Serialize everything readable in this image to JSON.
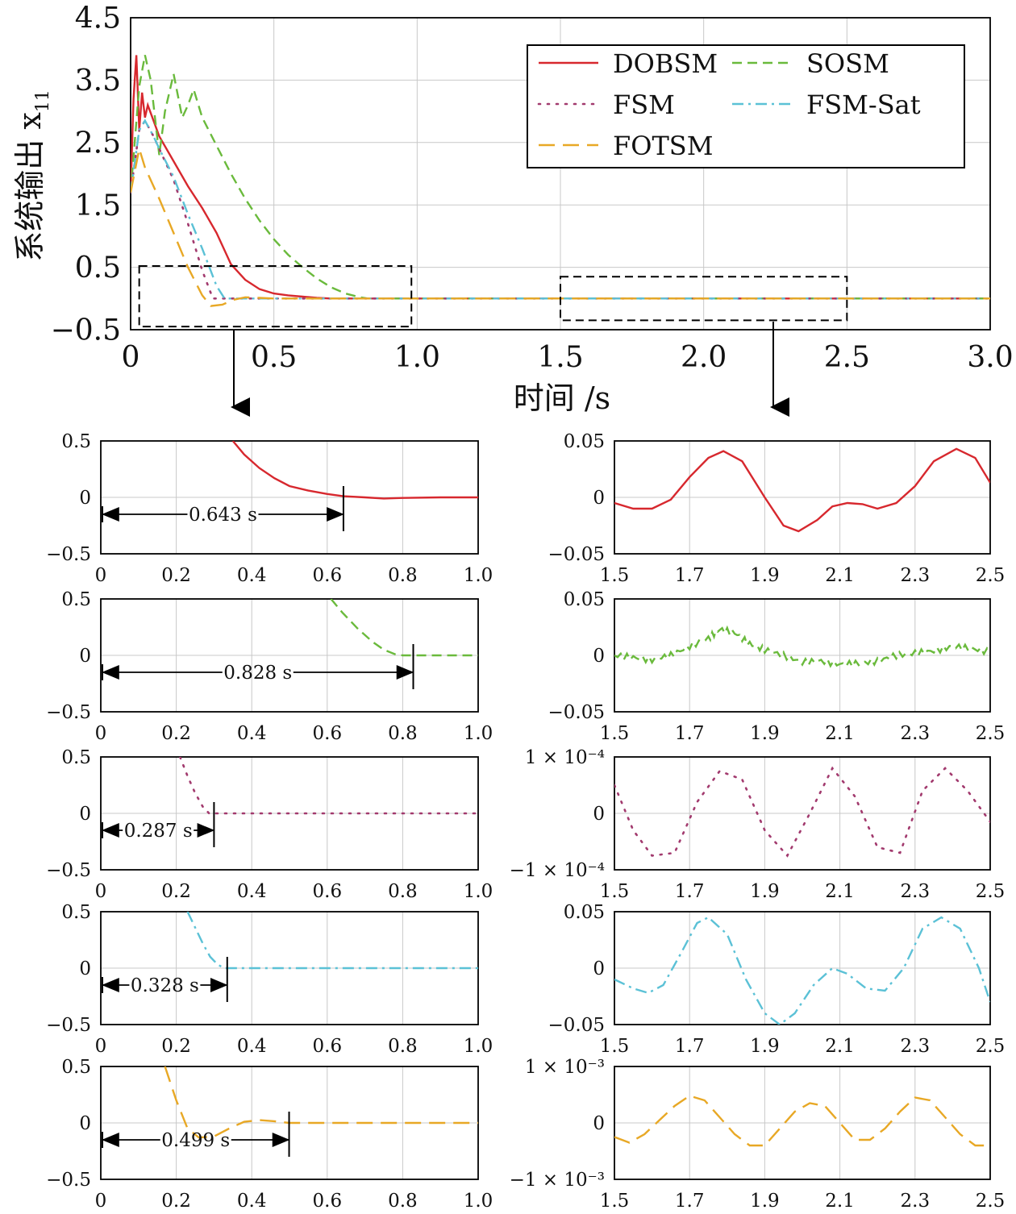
{
  "colors": {
    "DOBSM": "#d7282e",
    "SOSM": "#6aba3c",
    "FSM": "#a23a6e",
    "FSM-Sat": "#5bc1d6",
    "FOTSM": "#e8a825"
  },
  "chart_data": [
    {
      "id": "main",
      "type": "line",
      "xlabel": "时间 /s",
      "ylabel": "系统输出 x",
      "ylabel_sub": "11",
      "xlim": [
        0,
        3.0
      ],
      "ylim": [
        -0.5,
        4.5
      ],
      "xticks": [
        "0",
        "0.5",
        "1.0",
        "1.5",
        "2.0",
        "2.5",
        "3.0"
      ],
      "xtick_values": [
        0,
        0.5,
        1.0,
        1.5,
        2.0,
        2.5,
        3.0
      ],
      "yticks": [
        "4.5",
        "3.5",
        "2.5",
        "1.5",
        "0.5",
        "−0.5"
      ],
      "ytick_values": [
        4.5,
        3.5,
        2.5,
        1.5,
        0.5,
        -0.5
      ],
      "grid": true,
      "legend_position": "top-right",
      "legend": [
        "DOBSM",
        "SOSM",
        "FSM",
        "FSM-Sat",
        "FOTSM"
      ],
      "series": [
        {
          "name": "DOBSM",
          "style": "solid",
          "x": [
            0,
            0.01,
            0.02,
            0.03,
            0.04,
            0.05,
            0.06,
            0.08,
            0.1,
            0.15,
            0.2,
            0.25,
            0.3,
            0.35,
            0.4,
            0.45,
            0.5,
            0.55,
            0.6,
            0.65,
            0.7,
            0.8,
            1.0,
            1.5,
            2.0,
            2.5,
            3.0
          ],
          "y": [
            1.7,
            3.2,
            3.9,
            2.7,
            3.3,
            2.9,
            3.1,
            2.85,
            2.6,
            2.2,
            1.8,
            1.45,
            1.05,
            0.55,
            0.3,
            0.15,
            0.08,
            0.05,
            0.03,
            0.01,
            0.0,
            0.0,
            0.0,
            0.0,
            0.0,
            0.0,
            0.0
          ]
        },
        {
          "name": "SOSM",
          "style": "dashed",
          "x": [
            0,
            0.03,
            0.05,
            0.07,
            0.1,
            0.12,
            0.15,
            0.18,
            0.2,
            0.22,
            0.25,
            0.3,
            0.35,
            0.4,
            0.45,
            0.5,
            0.55,
            0.6,
            0.65,
            0.7,
            0.75,
            0.8,
            0.828,
            0.9,
            1.0,
            1.5,
            2.0,
            2.5,
            3.0
          ],
          "y": [
            1.7,
            3.4,
            3.9,
            3.5,
            2.3,
            3.0,
            3.6,
            2.9,
            3.1,
            3.35,
            2.9,
            2.45,
            2.0,
            1.6,
            1.25,
            0.95,
            0.7,
            0.5,
            0.32,
            0.18,
            0.08,
            0.02,
            0.0,
            0.0,
            0.0,
            0.0,
            0.0,
            0.0,
            0.0
          ]
        },
        {
          "name": "FSM",
          "style": "dotted",
          "x": [
            0,
            0.03,
            0.05,
            0.08,
            0.1,
            0.15,
            0.2,
            0.25,
            0.287,
            0.3,
            0.5,
            1.0,
            1.5,
            2.0,
            2.5,
            3.0
          ],
          "y": [
            1.7,
            2.7,
            2.85,
            2.6,
            2.4,
            1.9,
            1.2,
            0.45,
            0.0,
            0.0,
            0.0,
            0.0,
            0.0,
            0.0,
            0.0,
            0.0
          ]
        },
        {
          "name": "FSM-Sat",
          "style": "dashdot",
          "x": [
            0,
            0.03,
            0.05,
            0.08,
            0.1,
            0.15,
            0.2,
            0.25,
            0.3,
            0.328,
            0.4,
            0.5,
            1.0,
            1.5,
            2.0,
            2.5,
            3.0
          ],
          "y": [
            1.7,
            2.7,
            2.85,
            2.6,
            2.4,
            1.95,
            1.35,
            0.8,
            0.2,
            0.0,
            0.0,
            0.0,
            0.0,
            0.0,
            0.0,
            0.0,
            0.0
          ]
        },
        {
          "name": "FOTSM",
          "style": "longdash",
          "x": [
            0,
            0.03,
            0.05,
            0.1,
            0.15,
            0.2,
            0.25,
            0.28,
            0.32,
            0.36,
            0.4,
            0.45,
            0.5,
            0.6,
            1.0,
            1.5,
            2.0,
            2.5,
            3.0
          ],
          "y": [
            1.7,
            2.4,
            2.1,
            1.6,
            1.05,
            0.5,
            0.05,
            -0.12,
            -0.1,
            -0.02,
            0.02,
            0.01,
            0.0,
            0.0,
            0.0,
            0.0,
            0.0,
            0.0,
            0.0
          ]
        }
      ]
    },
    {
      "id": "left-1",
      "type": "line",
      "series_name": "DOBSM",
      "style": "solid",
      "xlim": [
        0,
        1.0
      ],
      "ylim": [
        -0.5,
        0.5
      ],
      "xticks": [
        "0",
        "0.2",
        "0.4",
        "0.6",
        "0.8",
        "1.0"
      ],
      "xtick_values": [
        0,
        0.2,
        0.4,
        0.6,
        0.8,
        1.0
      ],
      "yticks": [
        "0.5",
        "0",
        "−0.5"
      ],
      "ytick_values": [
        0.5,
        0,
        -0.5
      ],
      "x": [
        0.35,
        0.38,
        0.42,
        0.46,
        0.5,
        0.55,
        0.6,
        0.643,
        0.7,
        0.75,
        0.8,
        0.9,
        1.0
      ],
      "y": [
        0.5,
        0.38,
        0.26,
        0.17,
        0.1,
        0.06,
        0.03,
        0.01,
        0.0,
        -0.01,
        -0.005,
        0.0,
        0.0
      ],
      "annotation": {
        "label": "0.643 s",
        "x": 0.643,
        "y": -0.15,
        "arrows": "both"
      }
    },
    {
      "id": "right-1",
      "type": "line",
      "series_name": "DOBSM",
      "style": "solid",
      "xlim": [
        1.5,
        2.5
      ],
      "ylim": [
        -0.05,
        0.05
      ],
      "xticks": [
        "1.5",
        "1.7",
        "1.9",
        "2.1",
        "2.3",
        "2.5"
      ],
      "xtick_values": [
        1.5,
        1.7,
        1.9,
        2.1,
        2.3,
        2.5
      ],
      "yticks": [
        "0.05",
        "0",
        "−0.05"
      ],
      "ytick_values": [
        0.05,
        0,
        -0.05
      ],
      "x": [
        1.5,
        1.55,
        1.6,
        1.65,
        1.7,
        1.75,
        1.79,
        1.84,
        1.9,
        1.95,
        1.99,
        2.04,
        2.08,
        2.12,
        2.16,
        2.2,
        2.25,
        2.3,
        2.35,
        2.41,
        2.46,
        2.5
      ],
      "y": [
        -0.005,
        -0.01,
        -0.01,
        -0.002,
        0.018,
        0.035,
        0.041,
        0.032,
        0.0,
        -0.025,
        -0.03,
        -0.02,
        -0.008,
        -0.005,
        -0.006,
        -0.01,
        -0.005,
        0.01,
        0.032,
        0.043,
        0.035,
        0.013
      ]
    },
    {
      "id": "left-2",
      "type": "line",
      "series_name": "SOSM",
      "style": "dashed",
      "xlim": [
        0,
        1.0
      ],
      "ylim": [
        -0.5,
        0.5
      ],
      "xticks": [
        "0",
        "0.2",
        "0.4",
        "0.6",
        "0.8",
        "1.0"
      ],
      "xtick_values": [
        0,
        0.2,
        0.4,
        0.6,
        0.8,
        1.0
      ],
      "yticks": [
        "0.5",
        "0",
        "−0.5"
      ],
      "ytick_values": [
        0.5,
        0,
        -0.5
      ],
      "x": [
        0.61,
        0.64,
        0.68,
        0.72,
        0.75,
        0.78,
        0.8,
        0.828,
        0.9,
        1.0
      ],
      "y": [
        0.5,
        0.38,
        0.24,
        0.12,
        0.05,
        0.01,
        0.0,
        0.0,
        0.0,
        0.0
      ],
      "annotation": {
        "label": "0.828 s",
        "x": 0.828,
        "y": -0.15,
        "arrows": "both"
      }
    },
    {
      "id": "right-2",
      "type": "line",
      "series_name": "SOSM",
      "style": "dashed",
      "xlim": [
        1.5,
        2.5
      ],
      "ylim": [
        -0.05,
        0.05
      ],
      "xticks": [
        "1.5",
        "1.7",
        "1.9",
        "2.1",
        "2.3",
        "2.5"
      ],
      "xtick_values": [
        1.5,
        1.7,
        1.9,
        2.1,
        2.3,
        2.5
      ],
      "yticks": [
        "0.05",
        "0",
        "−0.05"
      ],
      "ytick_values": [
        0.05,
        0,
        -0.05
      ],
      "x": [
        1.5,
        1.55,
        1.6,
        1.65,
        1.7,
        1.75,
        1.78,
        1.82,
        1.86,
        1.9,
        1.95,
        2.0,
        2.05,
        2.1,
        2.15,
        2.2,
        2.25,
        2.3,
        2.35,
        2.4,
        2.45,
        2.5
      ],
      "y": [
        0.0,
        -0.002,
        -0.004,
        0.0,
        0.008,
        0.015,
        0.023,
        0.02,
        0.01,
        0.005,
        0.0,
        -0.006,
        -0.005,
        -0.008,
        -0.007,
        -0.005,
        0.0,
        0.002,
        0.004,
        0.008,
        0.006,
        0.003
      ],
      "noise": true
    },
    {
      "id": "left-3",
      "type": "line",
      "series_name": "FSM",
      "style": "dotted",
      "xlim": [
        0,
        1.0
      ],
      "ylim": [
        -0.5,
        0.5
      ],
      "xticks": [
        "0",
        "0.2",
        "0.4",
        "0.6",
        "0.8",
        "1.0"
      ],
      "xtick_values": [
        0,
        0.2,
        0.4,
        0.6,
        0.8,
        1.0
      ],
      "yticks": [
        "0.5",
        "0",
        "−0.5"
      ],
      "ytick_values": [
        0.5,
        0,
        -0.5
      ],
      "x": [
        0.21,
        0.23,
        0.25,
        0.27,
        0.287,
        0.3,
        0.4,
        0.5,
        0.6,
        0.7,
        0.8,
        0.9,
        1.0
      ],
      "y": [
        0.5,
        0.33,
        0.18,
        0.06,
        0.0,
        0.0,
        0.0,
        0.0,
        0.0,
        0.0,
        0.0,
        0.0,
        0.0
      ],
      "annotation": {
        "label": "0.287 s",
        "x": 0.3,
        "y": -0.15,
        "arrows": "both"
      }
    },
    {
      "id": "right-3",
      "type": "line",
      "series_name": "FSM",
      "style": "dotted",
      "xlim": [
        1.5,
        2.5
      ],
      "ylim": [
        -0.0001,
        0.0001
      ],
      "xticks": [
        "1.5",
        "1.7",
        "1.9",
        "2.1",
        "2.3",
        "2.5"
      ],
      "xtick_values": [
        1.5,
        1.7,
        1.9,
        2.1,
        2.3,
        2.5
      ],
      "yticks": [
        "1 × 10⁻⁴",
        "0",
        "−1 × 10⁻⁴"
      ],
      "ytick_values": [
        0.0001,
        0,
        -0.0001
      ],
      "x": [
        1.5,
        1.55,
        1.6,
        1.66,
        1.72,
        1.78,
        1.84,
        1.9,
        1.96,
        2.02,
        2.08,
        2.14,
        2.2,
        2.26,
        2.32,
        2.38,
        2.44,
        2.5
      ],
      "y": [
        5e-05,
        -3e-05,
        -7.5e-05,
        -7e-05,
        2e-05,
        7.5e-05,
        6e-05,
        -3e-05,
        -7.5e-05,
        0.0,
        8e-05,
        3e-05,
        -6e-05,
        -7e-05,
        4e-05,
        8e-05,
        4e-05,
        -1.5e-05
      ]
    },
    {
      "id": "left-4",
      "type": "line",
      "series_name": "FSM-Sat",
      "style": "dashdot",
      "xlim": [
        0,
        1.0
      ],
      "ylim": [
        -0.5,
        0.5
      ],
      "xticks": [
        "0",
        "0.2",
        "0.4",
        "0.6",
        "0.8",
        "1.0"
      ],
      "xtick_values": [
        0,
        0.2,
        0.4,
        0.6,
        0.8,
        1.0
      ],
      "yticks": [
        "0.5",
        "0",
        "−0.5"
      ],
      "ytick_values": [
        0.5,
        0,
        -0.5
      ],
      "x": [
        0.23,
        0.25,
        0.27,
        0.29,
        0.31,
        0.328,
        0.4,
        0.5,
        0.6,
        0.7,
        0.8,
        0.9,
        1.0
      ],
      "y": [
        0.5,
        0.36,
        0.22,
        0.1,
        0.03,
        0.0,
        0.0,
        0.0,
        0.0,
        0.0,
        0.0,
        0.0,
        0.0
      ],
      "annotation": {
        "label": "0.328 s",
        "x": 0.335,
        "y": -0.15,
        "arrows": "both"
      }
    },
    {
      "id": "right-4",
      "type": "line",
      "series_name": "FSM-Sat",
      "style": "dashdot",
      "xlim": [
        1.5,
        2.5
      ],
      "ylim": [
        -0.05,
        0.05
      ],
      "xticks": [
        "1.5",
        "1.7",
        "1.9",
        "2.1",
        "2.3",
        "2.5"
      ],
      "xtick_values": [
        1.5,
        1.7,
        1.9,
        2.1,
        2.3,
        2.5
      ],
      "yticks": [
        "0.05",
        "0",
        "−0.05"
      ],
      "ytick_values": [
        0.05,
        0,
        -0.05
      ],
      "x": [
        1.5,
        1.55,
        1.59,
        1.63,
        1.68,
        1.72,
        1.75,
        1.8,
        1.85,
        1.9,
        1.94,
        1.98,
        2.03,
        2.08,
        2.12,
        2.17,
        2.22,
        2.27,
        2.32,
        2.37,
        2.42,
        2.47,
        2.5
      ],
      "y": [
        -0.01,
        -0.018,
        -0.022,
        -0.015,
        0.015,
        0.04,
        0.045,
        0.03,
        -0.01,
        -0.04,
        -0.05,
        -0.04,
        -0.015,
        0.0,
        -0.005,
        -0.018,
        -0.02,
        0.0,
        0.035,
        0.045,
        0.035,
        0.0,
        -0.03
      ]
    },
    {
      "id": "left-5",
      "type": "line",
      "series_name": "FOTSM",
      "style": "longdash",
      "xlim": [
        0,
        1.0
      ],
      "ylim": [
        -0.5,
        0.5
      ],
      "xticks": [
        "0",
        "0.2",
        "0.4",
        "0.6",
        "0.8",
        "1.0"
      ],
      "xtick_values": [
        0,
        0.2,
        0.4,
        0.6,
        0.8,
        1.0
      ],
      "yticks": [
        "0.5",
        "0",
        "−0.5"
      ],
      "ytick_values": [
        0.5,
        0,
        -0.5
      ],
      "x": [
        0.17,
        0.2,
        0.23,
        0.26,
        0.3,
        0.34,
        0.38,
        0.42,
        0.46,
        0.499,
        0.6,
        0.7,
        0.8,
        0.9,
        1.0
      ],
      "y": [
        0.5,
        0.2,
        -0.05,
        -0.13,
        -0.12,
        -0.05,
        0.01,
        0.025,
        0.015,
        0.0,
        0.0,
        0.0,
        0.0,
        0.0,
        0.0
      ],
      "annotation": {
        "label": "0.499 s",
        "x": 0.499,
        "y": -0.15,
        "arrows": "both"
      }
    },
    {
      "id": "right-5",
      "type": "line",
      "series_name": "FOTSM",
      "style": "longdash",
      "xlim": [
        1.5,
        2.5
      ],
      "ylim": [
        -0.001,
        0.001
      ],
      "xticks": [
        "1.5",
        "1.7",
        "1.9",
        "2.1",
        "2.3",
        "2.5"
      ],
      "xtick_values": [
        1.5,
        1.7,
        1.9,
        2.1,
        2.3,
        2.5
      ],
      "yticks": [
        "1 × 10⁻³",
        "0",
        "−1 × 10⁻³"
      ],
      "ytick_values": [
        0.001,
        0,
        -0.001
      ],
      "x": [
        1.5,
        1.54,
        1.58,
        1.62,
        1.66,
        1.7,
        1.74,
        1.78,
        1.82,
        1.86,
        1.9,
        1.94,
        1.98,
        2.02,
        2.06,
        2.1,
        2.14,
        2.18,
        2.22,
        2.26,
        2.3,
        2.34,
        2.38,
        2.42,
        2.46,
        2.5
      ],
      "y": [
        -0.00025,
        -0.00035,
        -0.0002,
        5e-05,
        0.0003,
        0.00048,
        0.0004,
        0.0001,
        -0.0002,
        -0.0004,
        -0.0004,
        -0.0001,
        0.0002,
        0.00035,
        0.0003,
        0.0,
        -0.0003,
        -0.0003,
        -0.0001,
        0.0002,
        0.00045,
        0.0004,
        0.0001,
        -0.0002,
        -0.0004,
        -0.0004
      ]
    }
  ]
}
